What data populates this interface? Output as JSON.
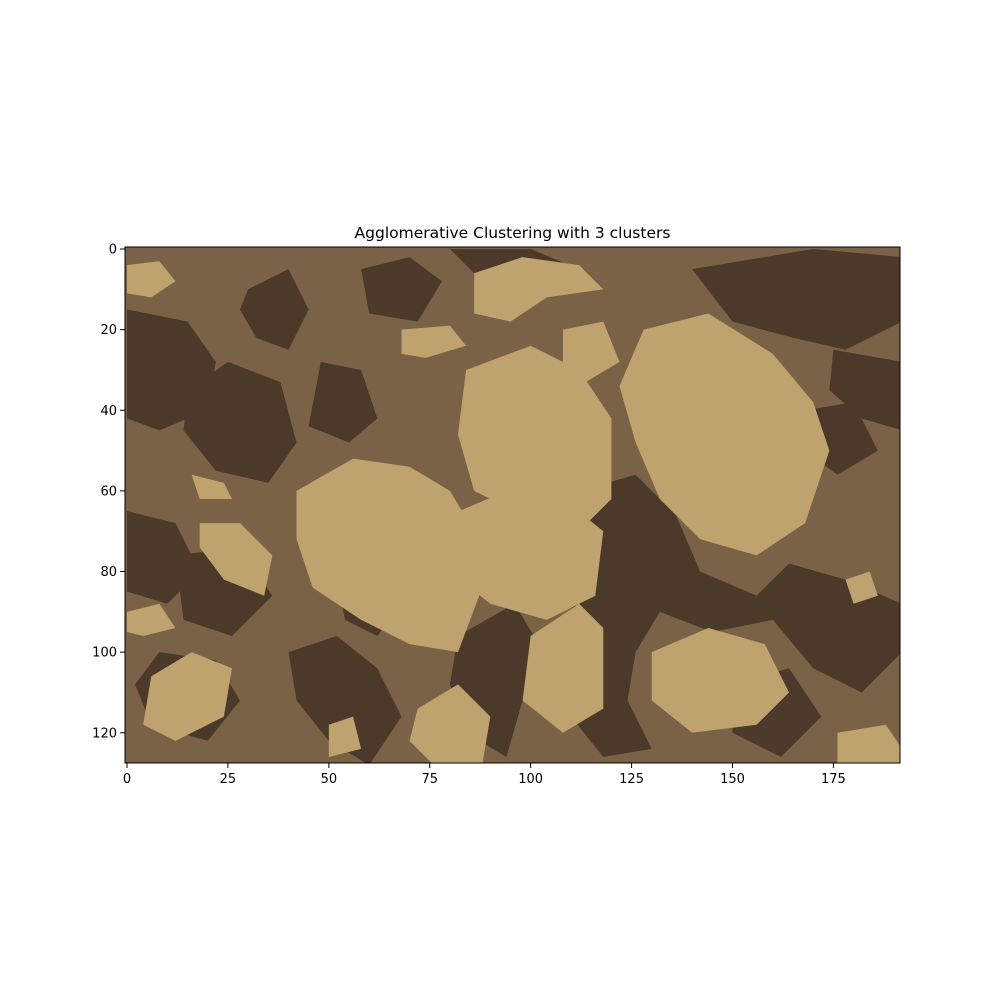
{
  "chart_data": {
    "type": "heatmap",
    "title": "Agglomerative Clustering with 3 clusters",
    "xlabel": "",
    "ylabel": "",
    "xlim": [
      -0.5,
      191.5
    ],
    "ylim": [
      127.5,
      -0.5
    ],
    "xticks": [
      0,
      25,
      50,
      75,
      100,
      125,
      150,
      175
    ],
    "yticks": [
      0,
      20,
      40,
      60,
      80,
      100,
      120
    ],
    "grid": false,
    "image_size": {
      "rows": 128,
      "cols": 192
    },
    "n_clusters": 3,
    "cluster_colors": [
      "#4b3a29",
      "#7a6246",
      "#bfa36e"
    ],
    "background_cluster": 1,
    "regions": [
      {
        "cluster": 0,
        "polygon": [
          [
            30,
            10
          ],
          [
            40,
            5
          ],
          [
            45,
            15
          ],
          [
            40,
            25
          ],
          [
            32,
            22
          ],
          [
            28,
            15
          ]
        ]
      },
      {
        "cluster": 0,
        "polygon": [
          [
            0,
            15
          ],
          [
            15,
            18
          ],
          [
            22,
            28
          ],
          [
            20,
            40
          ],
          [
            8,
            45
          ],
          [
            0,
            42
          ]
        ]
      },
      {
        "cluster": 0,
        "polygon": [
          [
            15,
            35
          ],
          [
            25,
            28
          ],
          [
            38,
            33
          ],
          [
            42,
            48
          ],
          [
            35,
            58
          ],
          [
            22,
            55
          ],
          [
            14,
            45
          ]
        ]
      },
      {
        "cluster": 0,
        "polygon": [
          [
            48,
            28
          ],
          [
            58,
            30
          ],
          [
            62,
            42
          ],
          [
            55,
            48
          ],
          [
            45,
            44
          ]
        ]
      },
      {
        "cluster": 0,
        "polygon": [
          [
            58,
            5
          ],
          [
            70,
            2
          ],
          [
            78,
            8
          ],
          [
            72,
            18
          ],
          [
            60,
            16
          ]
        ]
      },
      {
        "cluster": 0,
        "polygon": [
          [
            80,
            0
          ],
          [
            100,
            0
          ],
          [
            112,
            5
          ],
          [
            105,
            10
          ],
          [
            88,
            8
          ]
        ]
      },
      {
        "cluster": 0,
        "polygon": [
          [
            140,
            5
          ],
          [
            170,
            0
          ],
          [
            192,
            2
          ],
          [
            192,
            18
          ],
          [
            178,
            25
          ],
          [
            165,
            22
          ],
          [
            150,
            18
          ]
        ]
      },
      {
        "cluster": 0,
        "polygon": [
          [
            175,
            25
          ],
          [
            192,
            28
          ],
          [
            192,
            45
          ],
          [
            182,
            42
          ],
          [
            174,
            35
          ]
        ]
      },
      {
        "cluster": 0,
        "polygon": [
          [
            168,
            40
          ],
          [
            180,
            38
          ],
          [
            186,
            50
          ],
          [
            176,
            56
          ],
          [
            168,
            50
          ]
        ]
      },
      {
        "cluster": 0,
        "polygon": [
          [
            0,
            65
          ],
          [
            12,
            68
          ],
          [
            18,
            80
          ],
          [
            10,
            88
          ],
          [
            0,
            85
          ]
        ]
      },
      {
        "cluster": 0,
        "polygon": [
          [
            12,
            76
          ],
          [
            28,
            74
          ],
          [
            36,
            86
          ],
          [
            26,
            96
          ],
          [
            14,
            92
          ]
        ]
      },
      {
        "cluster": 0,
        "polygon": [
          [
            112,
            60
          ],
          [
            126,
            56
          ],
          [
            136,
            66
          ],
          [
            142,
            80
          ],
          [
            156,
            86
          ],
          [
            164,
            78
          ],
          [
            178,
            82
          ],
          [
            192,
            88
          ],
          [
            192,
            100
          ],
          [
            182,
            110
          ],
          [
            170,
            104
          ],
          [
            160,
            92
          ],
          [
            145,
            95
          ],
          [
            132,
            90
          ],
          [
            126,
            100
          ],
          [
            124,
            112
          ],
          [
            130,
            124
          ],
          [
            118,
            126
          ],
          [
            110,
            116
          ],
          [
            112,
            104
          ],
          [
            106,
            96
          ],
          [
            112,
            86
          ],
          [
            116,
            74
          ]
        ]
      },
      {
        "cluster": 0,
        "polygon": [
          [
            40,
            100
          ],
          [
            52,
            96
          ],
          [
            62,
            104
          ],
          [
            68,
            116
          ],
          [
            60,
            128
          ],
          [
            50,
            122
          ],
          [
            42,
            112
          ]
        ]
      },
      {
        "cluster": 0,
        "polygon": [
          [
            82,
            96
          ],
          [
            96,
            88
          ],
          [
            102,
            98
          ],
          [
            98,
            112
          ],
          [
            94,
            126
          ],
          [
            84,
            120
          ],
          [
            80,
            108
          ]
        ]
      },
      {
        "cluster": 0,
        "polygon": [
          [
            8,
            100
          ],
          [
            22,
            102
          ],
          [
            28,
            112
          ],
          [
            20,
            122
          ],
          [
            6,
            118
          ],
          [
            2,
            108
          ]
        ]
      },
      {
        "cluster": 0,
        "polygon": [
          [
            150,
            108
          ],
          [
            164,
            104
          ],
          [
            172,
            116
          ],
          [
            162,
            126
          ],
          [
            150,
            120
          ]
        ]
      },
      {
        "cluster": 0,
        "polygon": [
          [
            86,
            42
          ],
          [
            92,
            34
          ],
          [
            96,
            44
          ],
          [
            92,
            56
          ],
          [
            86,
            54
          ]
        ]
      },
      {
        "cluster": 0,
        "polygon": [
          [
            102,
            42
          ],
          [
            108,
            36
          ],
          [
            112,
            46
          ],
          [
            108,
            58
          ],
          [
            102,
            54
          ]
        ]
      },
      {
        "cluster": 0,
        "polygon": [
          [
            58,
            60
          ],
          [
            66,
            58
          ],
          [
            72,
            68
          ],
          [
            66,
            76
          ],
          [
            58,
            72
          ]
        ]
      },
      {
        "cluster": 0,
        "polygon": [
          [
            136,
            48
          ],
          [
            142,
            44
          ],
          [
            150,
            52
          ],
          [
            146,
            62
          ],
          [
            138,
            58
          ]
        ]
      },
      {
        "cluster": 0,
        "polygon": [
          [
            52,
            82
          ],
          [
            60,
            78
          ],
          [
            68,
            88
          ],
          [
            62,
            96
          ],
          [
            54,
            92
          ]
        ]
      },
      {
        "cluster": 2,
        "polygon": [
          [
            86,
            6
          ],
          [
            98,
            2
          ],
          [
            112,
            4
          ],
          [
            118,
            10
          ],
          [
            104,
            12
          ],
          [
            95,
            18
          ],
          [
            86,
            16
          ]
        ]
      },
      {
        "cluster": 2,
        "polygon": [
          [
            0,
            4
          ],
          [
            8,
            3
          ],
          [
            12,
            8
          ],
          [
            6,
            12
          ],
          [
            0,
            11
          ]
        ]
      },
      {
        "cluster": 2,
        "polygon": [
          [
            68,
            20
          ],
          [
            80,
            19
          ],
          [
            84,
            24
          ],
          [
            74,
            27
          ],
          [
            68,
            26
          ]
        ]
      },
      {
        "cluster": 2,
        "polygon": [
          [
            108,
            20
          ],
          [
            118,
            18
          ],
          [
            122,
            28
          ],
          [
            112,
            34
          ],
          [
            108,
            30
          ]
        ]
      },
      {
        "cluster": 2,
        "polygon": [
          [
            84,
            30
          ],
          [
            100,
            24
          ],
          [
            112,
            30
          ],
          [
            120,
            42
          ],
          [
            120,
            62
          ],
          [
            112,
            70
          ],
          [
            98,
            66
          ],
          [
            86,
            60
          ],
          [
            82,
            46
          ]
        ]
      },
      {
        "cluster": 2,
        "polygon": [
          [
            128,
            20
          ],
          [
            144,
            16
          ],
          [
            160,
            26
          ],
          [
            170,
            38
          ],
          [
            174,
            50
          ],
          [
            168,
            68
          ],
          [
            156,
            76
          ],
          [
            142,
            72
          ],
          [
            132,
            62
          ],
          [
            126,
            48
          ],
          [
            122,
            34
          ]
        ]
      },
      {
        "cluster": 2,
        "polygon": [
          [
            42,
            60
          ],
          [
            56,
            52
          ],
          [
            70,
            54
          ],
          [
            80,
            60
          ],
          [
            86,
            70
          ],
          [
            88,
            84
          ],
          [
            82,
            100
          ],
          [
            70,
            98
          ],
          [
            58,
            92
          ],
          [
            46,
            84
          ],
          [
            42,
            72
          ]
        ]
      },
      {
        "cluster": 2,
        "polygon": [
          [
            80,
            66
          ],
          [
            94,
            60
          ],
          [
            108,
            62
          ],
          [
            118,
            70
          ],
          [
            116,
            86
          ],
          [
            104,
            92
          ],
          [
            90,
            88
          ],
          [
            80,
            80
          ]
        ]
      },
      {
        "cluster": 2,
        "polygon": [
          [
            18,
            68
          ],
          [
            28,
            68
          ],
          [
            36,
            76
          ],
          [
            34,
            86
          ],
          [
            24,
            82
          ],
          [
            18,
            74
          ]
        ]
      },
      {
        "cluster": 2,
        "polygon": [
          [
            16,
            56
          ],
          [
            24,
            58
          ],
          [
            26,
            62
          ],
          [
            18,
            62
          ]
        ]
      },
      {
        "cluster": 2,
        "polygon": [
          [
            0,
            90
          ],
          [
            8,
            88
          ],
          [
            12,
            94
          ],
          [
            4,
            96
          ],
          [
            0,
            95
          ]
        ]
      },
      {
        "cluster": 2,
        "polygon": [
          [
            6,
            106
          ],
          [
            16,
            100
          ],
          [
            26,
            104
          ],
          [
            24,
            116
          ],
          [
            12,
            122
          ],
          [
            4,
            118
          ]
        ]
      },
      {
        "cluster": 2,
        "polygon": [
          [
            72,
            114
          ],
          [
            82,
            108
          ],
          [
            90,
            116
          ],
          [
            88,
            128
          ],
          [
            76,
            128
          ],
          [
            70,
            122
          ]
        ]
      },
      {
        "cluster": 2,
        "polygon": [
          [
            100,
            96
          ],
          [
            112,
            88
          ],
          [
            118,
            94
          ],
          [
            118,
            114
          ],
          [
            108,
            120
          ],
          [
            98,
            112
          ]
        ]
      },
      {
        "cluster": 2,
        "polygon": [
          [
            130,
            100
          ],
          [
            144,
            94
          ],
          [
            158,
            98
          ],
          [
            164,
            110
          ],
          [
            156,
            118
          ],
          [
            140,
            120
          ],
          [
            130,
            112
          ]
        ]
      },
      {
        "cluster": 2,
        "polygon": [
          [
            176,
            120
          ],
          [
            188,
            118
          ],
          [
            192,
            124
          ],
          [
            192,
            128
          ],
          [
            176,
            128
          ]
        ]
      },
      {
        "cluster": 2,
        "polygon": [
          [
            50,
            118
          ],
          [
            56,
            116
          ],
          [
            58,
            124
          ],
          [
            50,
            126
          ]
        ]
      },
      {
        "cluster": 2,
        "polygon": [
          [
            178,
            82
          ],
          [
            184,
            80
          ],
          [
            186,
            86
          ],
          [
            180,
            88
          ]
        ]
      }
    ]
  }
}
